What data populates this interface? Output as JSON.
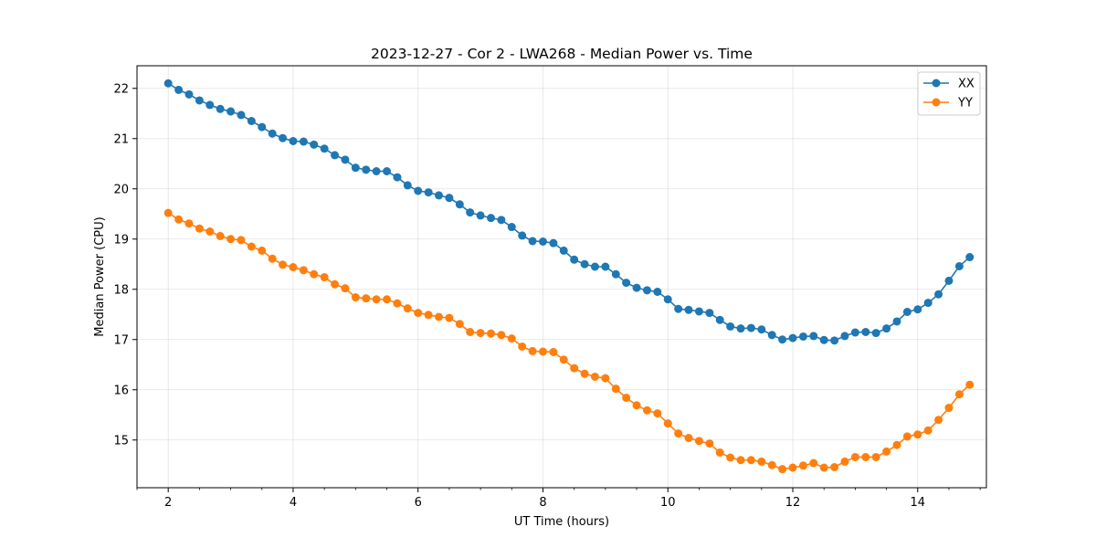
{
  "chart_data": {
    "type": "line",
    "title": "2023-12-27 - Cor 2 - LWA268 - Median Power vs. Time",
    "xlabel": "UT Time (hours)",
    "ylabel": "Median Power (CPU)",
    "xlim": [
      1.5,
      15.1
    ],
    "ylim": [
      14.05,
      22.45
    ],
    "xticks": [
      2,
      4,
      6,
      8,
      10,
      12,
      14
    ],
    "yticks": [
      15,
      16,
      17,
      18,
      19,
      20,
      21,
      22
    ],
    "grid": true,
    "legend_position": "upper right",
    "x": [
      2.0,
      2.167,
      2.333,
      2.5,
      2.667,
      2.833,
      3.0,
      3.167,
      3.333,
      3.5,
      3.667,
      3.833,
      4.0,
      4.167,
      4.333,
      4.5,
      4.667,
      4.833,
      5.0,
      5.167,
      5.333,
      5.5,
      5.667,
      5.833,
      6.0,
      6.167,
      6.333,
      6.5,
      6.667,
      6.833,
      7.0,
      7.167,
      7.333,
      7.5,
      7.667,
      7.833,
      8.0,
      8.167,
      8.333,
      8.5,
      8.667,
      8.833,
      9.0,
      9.167,
      9.333,
      9.5,
      9.667,
      9.833,
      10.0,
      10.167,
      10.333,
      10.5,
      10.667,
      10.833,
      11.0,
      11.167,
      11.333,
      11.5,
      11.667,
      11.833,
      12.0,
      12.167,
      12.333,
      12.5,
      12.667,
      12.833,
      13.0,
      13.167,
      13.333,
      13.5,
      13.667,
      13.833,
      14.0,
      14.167,
      14.333,
      14.5,
      14.667,
      14.833
    ],
    "series": [
      {
        "name": "XX",
        "color": "#1f77b4",
        "values": [
          22.1,
          21.97,
          21.88,
          21.76,
          21.67,
          21.59,
          21.54,
          21.47,
          21.35,
          21.23,
          21.1,
          21.01,
          20.95,
          20.94,
          20.88,
          20.8,
          20.67,
          20.58,
          20.42,
          20.38,
          20.35,
          20.35,
          20.23,
          20.07,
          19.96,
          19.93,
          19.87,
          19.82,
          19.69,
          19.53,
          19.47,
          19.42,
          19.38,
          19.24,
          19.07,
          18.96,
          18.95,
          18.92,
          18.77,
          18.59,
          18.5,
          18.45,
          18.45,
          18.3,
          18.13,
          18.03,
          17.98,
          17.95,
          17.8,
          17.61,
          17.59,
          17.56,
          17.53,
          17.39,
          17.26,
          17.22,
          17.23,
          17.2,
          17.09,
          17.0,
          17.03,
          17.06,
          17.07,
          16.99,
          16.98,
          17.07,
          17.14,
          17.15,
          17.13,
          17.22,
          17.36,
          17.55,
          17.6,
          17.73,
          17.9,
          18.17,
          18.46,
          18.64
        ]
      },
      {
        "name": "YY",
        "color": "#ff7f0e",
        "values": [
          19.52,
          19.39,
          19.31,
          19.21,
          19.15,
          19.06,
          19.0,
          18.98,
          18.85,
          18.77,
          18.61,
          18.49,
          18.44,
          18.38,
          18.3,
          18.24,
          18.1,
          18.02,
          17.84,
          17.82,
          17.8,
          17.8,
          17.72,
          17.62,
          17.53,
          17.49,
          17.45,
          17.43,
          17.31,
          17.15,
          17.13,
          17.12,
          17.09,
          17.02,
          16.86,
          16.77,
          16.76,
          16.75,
          16.6,
          16.43,
          16.32,
          16.26,
          16.23,
          16.02,
          15.84,
          15.69,
          15.59,
          15.53,
          15.33,
          15.13,
          15.04,
          14.98,
          14.93,
          14.75,
          14.65,
          14.6,
          14.6,
          14.57,
          14.5,
          14.42,
          14.45,
          14.49,
          14.54,
          14.45,
          14.46,
          14.57,
          14.66,
          14.66,
          14.66,
          14.77,
          14.9,
          15.07,
          15.11,
          15.19,
          15.4,
          15.64,
          15.91,
          16.1
        ]
      }
    ]
  }
}
